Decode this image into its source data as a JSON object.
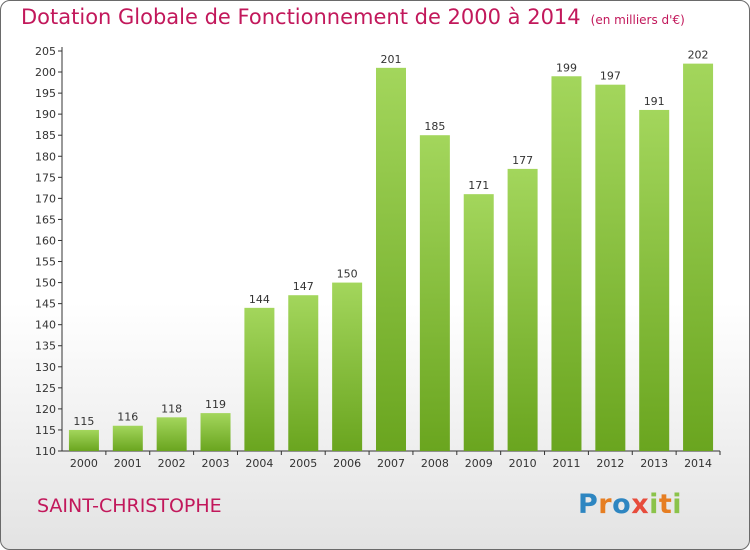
{
  "header": {
    "title": "Dotation Globale de Fonctionnement de 2000 à 2014",
    "unit": "(en milliers d'€)"
  },
  "commune": "SAINT-CHRISTOPHE",
  "brand": {
    "letters": [
      "P",
      "r",
      "o",
      "x",
      "i",
      "t",
      "i"
    ],
    "colors": [
      "#2e86c1",
      "#e67e22",
      "#2e86c1",
      "#e74c3c",
      "#8bc34a",
      "#e67e22",
      "#8bc34a"
    ]
  },
  "colors": {
    "bar_light": "#a3d65c",
    "bar_dark": "#6aa51f",
    "accent": "#c2185b"
  },
  "chart_data": {
    "type": "bar",
    "categories": [
      "2000",
      "2001",
      "2002",
      "2003",
      "2004",
      "2005",
      "2006",
      "2007",
      "2008",
      "2009",
      "2010",
      "2011",
      "2012",
      "2013",
      "2014"
    ],
    "values": [
      115,
      116,
      118,
      119,
      144,
      147,
      150,
      201,
      185,
      171,
      177,
      199,
      197,
      191,
      202
    ],
    "data_labels": [
      "115",
      "116",
      "118",
      "119",
      "144",
      "147",
      "150",
      "201",
      "185",
      "171",
      "177",
      "199",
      "197",
      "191",
      "202"
    ],
    "yticks": [
      "110",
      "115",
      "120",
      "125",
      "130",
      "135",
      "140",
      "145",
      "150",
      "155",
      "160",
      "165",
      "170",
      "175",
      "180",
      "185",
      "190",
      "195",
      "200",
      "205"
    ],
    "ylim": [
      110,
      205
    ],
    "grid": false,
    "xlabel": "",
    "ylabel": ""
  }
}
